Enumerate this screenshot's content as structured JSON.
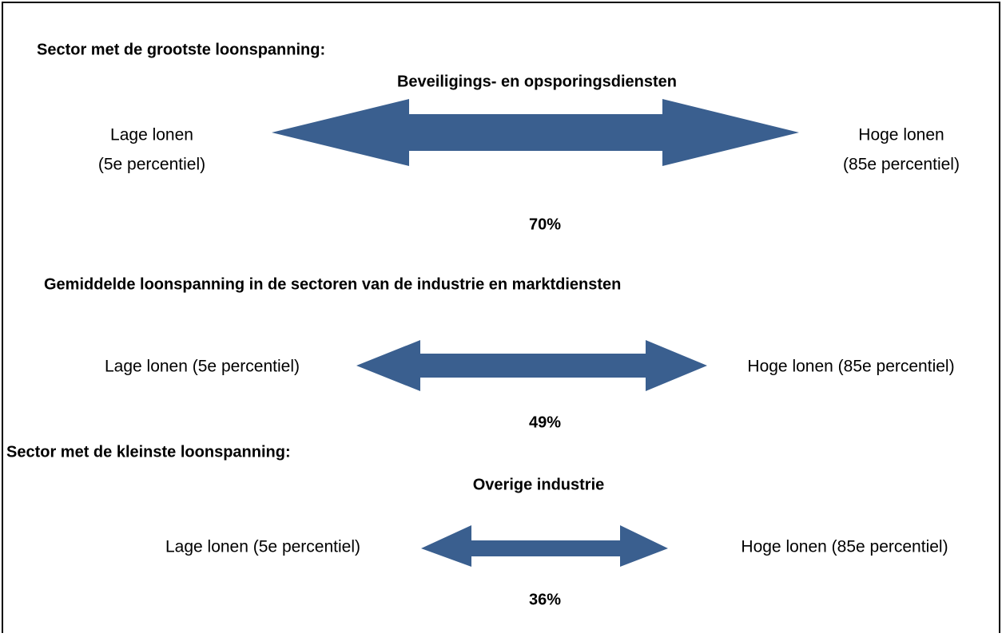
{
  "sections": [
    {
      "heading": "Sector met de grootste loonspanning:",
      "sector": "Beveiligings- en opsporingsdiensten",
      "low_label": [
        "Lage lonen",
        "(5e percentiel)"
      ],
      "high_label": [
        "Hoge lonen",
        "(85e percentiel)"
      ],
      "spread": "70%"
    },
    {
      "heading": "Gemiddelde loonspanning in de sectoren van de industrie en marktdiensten",
      "low_label": [
        "Lage lonen (5e percentiel)"
      ],
      "high_label": [
        "Hoge lonen (85e percentiel)"
      ],
      "spread": "49%"
    },
    {
      "heading": "Sector met de kleinste loonspanning:",
      "sector": "Overige industrie",
      "low_label": [
        "Lage lonen (5e percentiel)"
      ],
      "high_label": [
        "Hoge lonen (85e percentiel)"
      ],
      "spread": "36%"
    }
  ]
}
